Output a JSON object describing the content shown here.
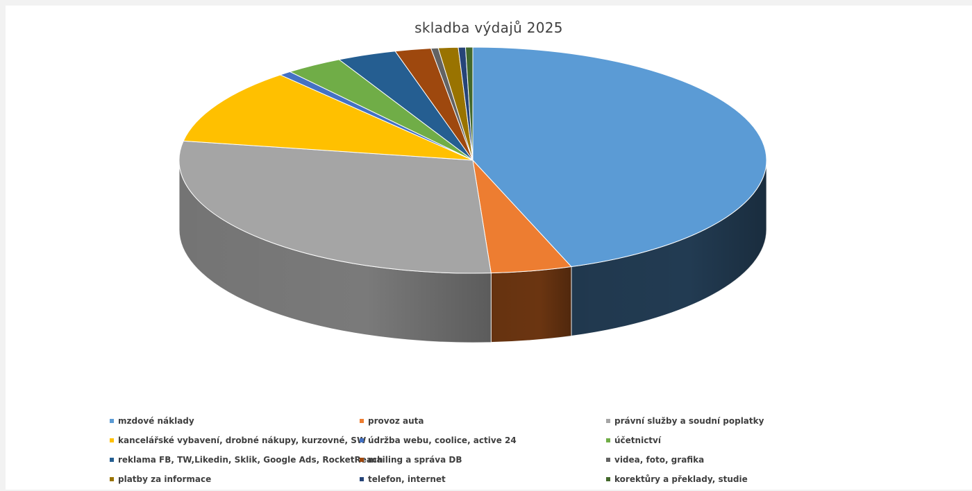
{
  "chart_data": {
    "type": "pie",
    "style": "3d",
    "title": "skladba výdajů 2025",
    "legend_position": "bottom",
    "slices": [
      {
        "label": "mzdové náklady",
        "value": 45.0,
        "color": "#5b9bd5",
        "side_color": "#223b52"
      },
      {
        "label": "provoz auta",
        "value": 4.5,
        "color": "#ed7d31",
        "side_color": "#6b3511"
      },
      {
        "label": "právní služby a soudní poplatky",
        "value": 29.0,
        "color": "#a5a5a5",
        "side_color": "#7a7a7a"
      },
      {
        "label": "kancelářské vybavení, drobné nákupy, kurzovné, SW",
        "value": 11.0,
        "color": "#ffc000",
        "side_color": "#8a6700"
      },
      {
        "label": "údržba webu, coolice, active 24",
        "value": 0.7,
        "color": "#4472c4",
        "side_color": "#223b6b"
      },
      {
        "label": "účetnictví",
        "value": 3.2,
        "color": "#70ad47",
        "side_color": "#3d5f25"
      },
      {
        "label": "reklama FB, TW,Likedin, Sklik, Google Ads, RocketReach",
        "value": 3.3,
        "color": "#255e91",
        "side_color": "#14324d"
      },
      {
        "label": "mailing a správa DB",
        "value": 2.0,
        "color": "#9e480e",
        "side_color": "#55270a"
      },
      {
        "label": "videa, foto, grafika",
        "value": 0.4,
        "color": "#636363",
        "side_color": "#3a3a3a"
      },
      {
        "label": "platby za informace",
        "value": 1.1,
        "color": "#997300",
        "side_color": "#5a4400"
      },
      {
        "label": "telefon, internet",
        "value": 0.4,
        "color": "#264478",
        "side_color": "#132240"
      },
      {
        "label": "korektůry a překlady, studie",
        "value": 0.4,
        "color": "#43682b",
        "side_color": "#253a18"
      }
    ]
  }
}
